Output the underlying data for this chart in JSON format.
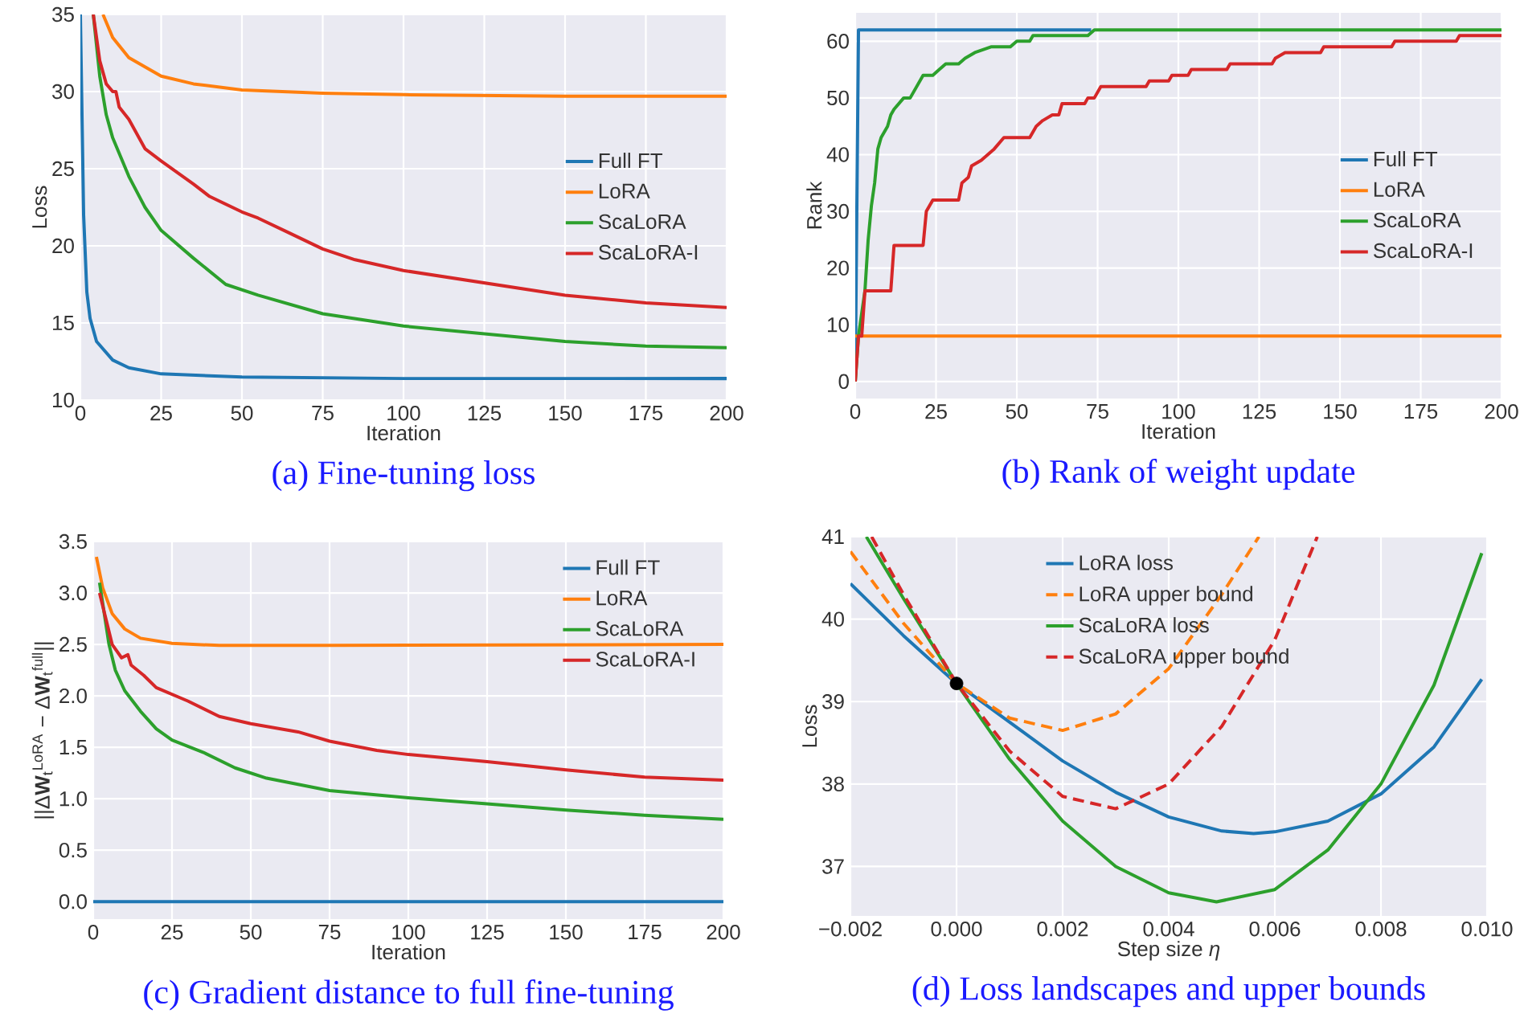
{
  "chart_data": [
    {
      "type": "line",
      "title": "(a) Fine-tuning loss",
      "xlabel": "Iteration",
      "ylabel": "Loss",
      "xlim": [
        0,
        200
      ],
      "ylim": [
        10,
        35
      ],
      "xticks": [
        0,
        25,
        50,
        75,
        100,
        125,
        150,
        175,
        200
      ],
      "yticks": [
        10,
        15,
        20,
        25,
        30,
        35
      ],
      "grid": true,
      "legend": "right",
      "series": [
        {
          "name": "Full FT",
          "color": "#1f77b4",
          "x": [
            0,
            1,
            2,
            3,
            5,
            10,
            15,
            25,
            50,
            100,
            200
          ],
          "values": [
            35,
            22,
            17,
            15.3,
            13.8,
            12.6,
            12.1,
            11.7,
            11.5,
            11.4,
            11.4
          ]
        },
        {
          "name": "LoRA",
          "color": "#ff7f0e",
          "x": [
            7,
            10,
            15,
            25,
            35,
            50,
            75,
            100,
            150,
            200
          ],
          "values": [
            35,
            33.5,
            32.2,
            31,
            30.5,
            30.1,
            29.9,
            29.8,
            29.7,
            29.7
          ]
        },
        {
          "name": "ScaLoRA",
          "color": "#2ca02c",
          "x": [
            4,
            6,
            8,
            10,
            15,
            20,
            25,
            35,
            45,
            55,
            75,
            100,
            125,
            150,
            175,
            200
          ],
          "values": [
            35,
            31,
            28.5,
            27,
            24.5,
            22.5,
            21,
            19.2,
            17.5,
            16.8,
            15.6,
            14.8,
            14.3,
            13.8,
            13.5,
            13.4
          ]
        },
        {
          "name": "ScaLoRA-I",
          "color": "#d62728",
          "x": [
            4,
            6,
            8,
            10,
            11,
            12,
            15,
            20,
            25,
            35,
            40,
            50,
            55,
            65,
            75,
            85,
            100,
            125,
            150,
            175,
            200
          ],
          "values": [
            35,
            32,
            30.5,
            30,
            30,
            29,
            28.2,
            26.3,
            25.5,
            24,
            23.2,
            22.2,
            21.8,
            20.8,
            19.8,
            19.1,
            18.4,
            17.6,
            16.8,
            16.3,
            16
          ]
        }
      ]
    },
    {
      "type": "line",
      "title": "(b) Rank of weight update",
      "xlabel": "Iteration",
      "ylabel": "Rank",
      "xlim": [
        0,
        200
      ],
      "ylim": [
        -3,
        65
      ],
      "xticks": [
        0,
        25,
        50,
        75,
        100,
        125,
        150,
        175,
        200
      ],
      "yticks": [
        0,
        10,
        20,
        30,
        40,
        50,
        60
      ],
      "grid": true,
      "legend": "right",
      "series": [
        {
          "name": "Full FT",
          "color": "#1f77b4",
          "x": [
            0,
            1,
            73
          ],
          "values": [
            0,
            62,
            62
          ]
        },
        {
          "name": "LoRA",
          "color": "#ff7f0e",
          "x": [
            0,
            200
          ],
          "values": [
            8,
            8
          ]
        },
        {
          "name": "ScaLoRA",
          "color": "#2ca02c",
          "x": [
            0,
            1,
            3,
            4,
            5,
            6,
            7,
            8,
            10,
            11,
            12,
            15,
            17,
            21,
            24,
            26,
            28,
            32,
            34,
            37,
            42,
            48,
            50,
            54,
            55,
            72,
            74,
            200
          ],
          "values": [
            0,
            8,
            16,
            25,
            31,
            35,
            41,
            43,
            45,
            47,
            48,
            50,
            50,
            54,
            54,
            55,
            56,
            56,
            57,
            58,
            59,
            59,
            60,
            60,
            61,
            61,
            62,
            62
          ]
        },
        {
          "name": "ScaLoRA-I",
          "color": "#d62728",
          "x": [
            0,
            1,
            2,
            3,
            11,
            12,
            21,
            22,
            24,
            32,
            33,
            35,
            36,
            39,
            41,
            43,
            46,
            54,
            56,
            58,
            61,
            63,
            64,
            71,
            72,
            74,
            76,
            90,
            91,
            97,
            98,
            103,
            104,
            115,
            116,
            129,
            130,
            133,
            144,
            145,
            166,
            167,
            186,
            187,
            200
          ],
          "values": [
            0,
            8,
            8,
            16,
            16,
            24,
            24,
            30,
            32,
            32,
            35,
            36,
            38,
            39,
            40,
            41,
            43,
            43,
            45,
            46,
            47,
            47,
            49,
            49,
            50,
            50,
            52,
            52,
            53,
            53,
            54,
            54,
            55,
            55,
            56,
            56,
            57,
            58,
            58,
            59,
            59,
            60,
            60,
            61,
            61
          ]
        }
      ]
    },
    {
      "type": "line",
      "title": "(c) Gradient distance to full fine-tuning",
      "xlabel": "Iteration",
      "ylabel": "||Δ**W**$_{t}$$^{LoRA}$ − Δ**W**$_{t}$$^{full}$||",
      "xlim": [
        0,
        200
      ],
      "ylim": [
        -0.17,
        3.5
      ],
      "xticks": [
        0,
        25,
        50,
        75,
        100,
        125,
        150,
        175,
        200
      ],
      "yticks": [
        {
          "value": 0,
          "label": "0.0"
        },
        0.5,
        {
          "value": 1,
          "label": "1.0"
        },
        1.5,
        {
          "value": 2,
          "label": "2.0"
        },
        2.5,
        {
          "value": 3,
          "label": "3.0"
        },
        3.5
      ],
      "grid": true,
      "legend": "top right",
      "series": [
        {
          "name": "Full FT",
          "color": "#1f77b4",
          "x": [
            0,
            200
          ],
          "values": [
            0,
            0
          ]
        },
        {
          "name": "LoRA",
          "color": "#ff7f0e",
          "x": [
            1,
            3,
            6,
            10,
            15,
            25,
            40,
            75,
            200
          ],
          "values": [
            3.35,
            3.05,
            2.8,
            2.65,
            2.56,
            2.51,
            2.49,
            2.49,
            2.5
          ]
        },
        {
          "name": "ScaLoRA",
          "color": "#2ca02c",
          "x": [
            2,
            3,
            5,
            7,
            10,
            15,
            20,
            25,
            35,
            45,
            55,
            75,
            100,
            125,
            150,
            175,
            200
          ],
          "values": [
            3.1,
            2.9,
            2.5,
            2.25,
            2.05,
            1.85,
            1.68,
            1.57,
            1.45,
            1.3,
            1.2,
            1.08,
            1.01,
            0.95,
            0.89,
            0.84,
            0.8
          ]
        },
        {
          "name": "ScaLoRA-I",
          "color": "#d62728",
          "x": [
            2,
            4,
            6,
            9,
            11,
            12,
            16,
            20,
            30,
            40,
            50,
            65,
            75,
            90,
            100,
            125,
            150,
            175,
            200
          ],
          "values": [
            3.0,
            2.75,
            2.5,
            2.37,
            2.4,
            2.3,
            2.2,
            2.08,
            1.95,
            1.8,
            1.73,
            1.65,
            1.56,
            1.47,
            1.43,
            1.36,
            1.28,
            1.21,
            1.18
          ]
        }
      ]
    },
    {
      "type": "line",
      "title": "(d) Loss landscapes and upper bounds",
      "xlabel": "Step size *η*",
      "ylabel": "Loss",
      "xlim": [
        -0.002,
        0.01
      ],
      "ylim": [
        36.4,
        41
      ],
      "xticks": [
        {
          "value": -0.002,
          "label": "−0.002"
        },
        {
          "value": 0,
          "label": "0.000"
        },
        0.002,
        0.004,
        0.006,
        0.008,
        {
          "value": 0.01,
          "label": "0.010"
        }
      ],
      "yticks": [
        37,
        38,
        39,
        40,
        41
      ],
      "grid": true,
      "legend": "top",
      "series": [
        {
          "name": "LoRA loss",
          "color": "#1f77b4",
          "line_style": "solid",
          "x": [
            -0.002,
            -0.001,
            0,
            0.001,
            0.002,
            0.003,
            0.004,
            0.005,
            0.0056,
            0.006,
            0.007,
            0.008,
            0.009,
            0.0099
          ],
          "values": [
            40.43,
            39.8,
            39.22,
            38.75,
            38.28,
            37.9,
            37.6,
            37.43,
            37.4,
            37.42,
            37.55,
            37.88,
            38.45,
            39.27
          ]
        },
        {
          "name": "LoRA upper bound",
          "color": "#ff7f0e",
          "line_style": "dashed",
          "x": [
            -0.002,
            -0.001,
            0,
            0.001,
            0.002,
            0.003,
            0.004,
            0.005,
            0.0057
          ],
          "values": [
            40.82,
            39.95,
            39.22,
            38.8,
            38.65,
            38.85,
            39.4,
            40.3,
            41
          ]
        },
        {
          "name": "ScaLoRA loss",
          "color": "#2ca02c",
          "line_style": "solid",
          "x": [
            -0.0017,
            -0.001,
            0,
            0.001,
            0.002,
            0.003,
            0.004,
            0.0049,
            0.006,
            0.007,
            0.008,
            0.009,
            0.0099
          ],
          "values": [
            41,
            40.25,
            39.22,
            38.3,
            37.55,
            37.0,
            36.68,
            36.57,
            36.72,
            37.2,
            38.0,
            39.2,
            40.8
          ]
        },
        {
          "name": "ScaLoRA upper bound",
          "color": "#d62728",
          "line_style": "dashed",
          "x": [
            -0.0016,
            -0.001,
            0,
            0.001,
            0.002,
            0.003,
            0.004,
            0.005,
            0.006,
            0.0068
          ],
          "values": [
            41,
            40.3,
            39.22,
            38.4,
            37.85,
            37.7,
            38.0,
            38.7,
            39.75,
            41
          ]
        },
        {
          "type": "scatter",
          "color": "#000000",
          "x": [
            0
          ],
          "values": [
            39.22
          ]
        }
      ]
    }
  ]
}
